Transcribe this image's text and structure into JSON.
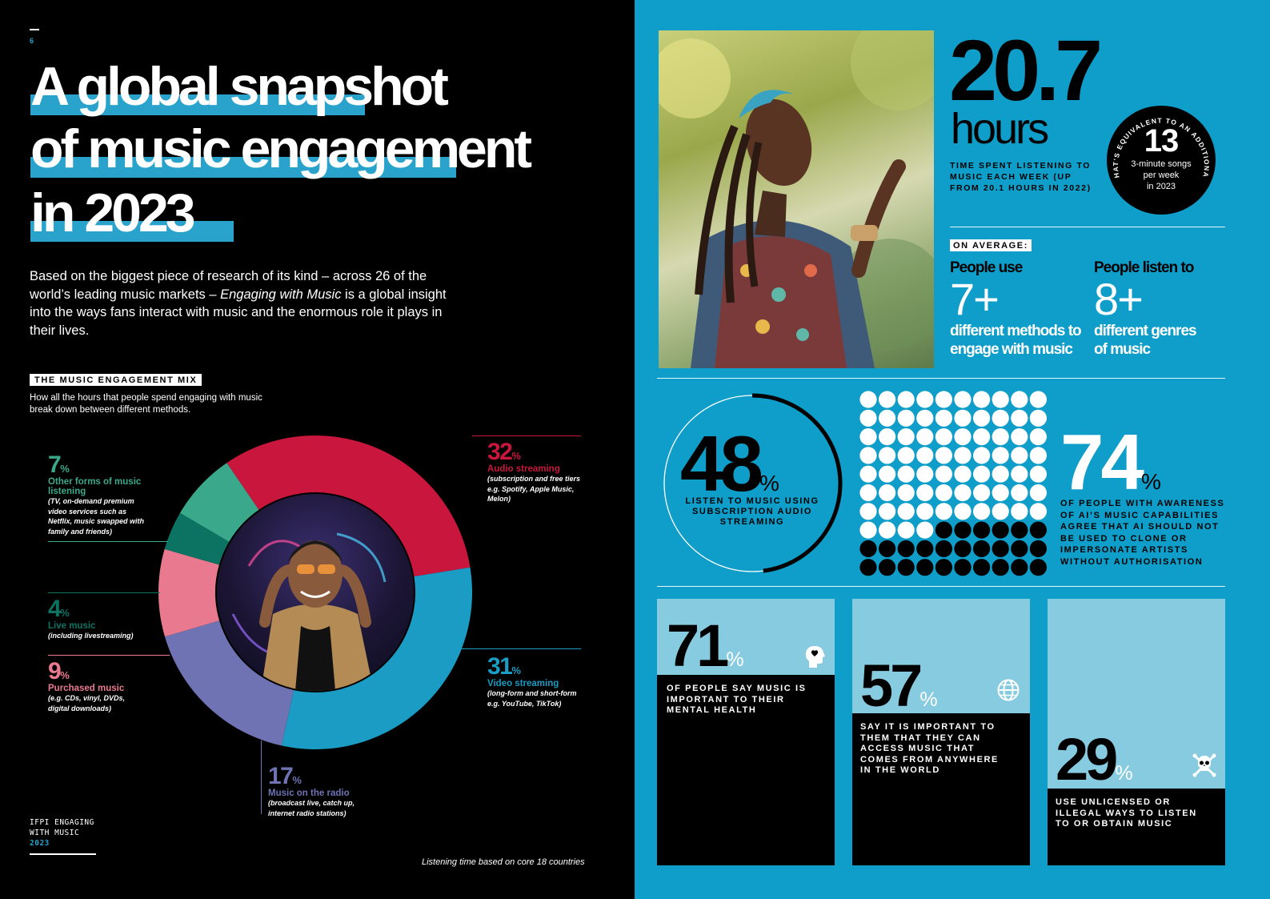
{
  "left": {
    "page_number": "6",
    "title_lines": [
      "A global snapshot",
      "of music engagement",
      "in 2023"
    ],
    "intro_parts": {
      "a": "Based on the biggest piece of research of its kind – across 26 of the world’s leading music markets – ",
      "b": "Engaging with Music",
      "c": " is a global insight into the ways fans interact with music and the enormous role it plays in their lives."
    },
    "mix_label": "THE MUSIC ENGAGEMENT MIX",
    "mix_description": "How all the hours that people spend engaging with music break down between different methods.",
    "footer_brand_lines": [
      "IFPI ENGAGING",
      "WITH MUSIC",
      "2023"
    ],
    "footnote": "Listening time based on core 18 countries"
  },
  "chart_data": {
    "type": "pie",
    "donut": true,
    "unit": "%",
    "slices": [
      {
        "name": "Audio streaming",
        "value": 32,
        "note": "(subscription and free tiers e.g. Spotify, Apple Music, Melon)",
        "color": "#c8163d"
      },
      {
        "name": "Video streaming",
        "value": 31,
        "note": "(long-form and short-form e.g. YouTube, TikTok)",
        "color": "#1a9cc4"
      },
      {
        "name": "Music on the radio",
        "value": 17,
        "note": "(broadcast live, catch up, internet radio stations)",
        "color": "#6f73b4"
      },
      {
        "name": "Purchased music",
        "value": 9,
        "note": "(e.g. CDs, vinyl, DVDs, digital downloads)",
        "color": "#e9798e"
      },
      {
        "name": "Live music",
        "value": 4,
        "note": "(including livestreaming)",
        "color": "#0c7363"
      },
      {
        "name": "Other forms of music listening",
        "value": 7,
        "note": "(TV, on-demand premium video services such as Netflix, music swapped with family and friends)",
        "color": "#3aa88a"
      }
    ]
  },
  "right": {
    "hours_value": "20.7",
    "hours_unit": "hours",
    "hours_note": "TIME SPENT LISTENING TO MUSIC EACH WEEK (UP FROM 20.1 HOURS IN 2022)",
    "equiv_arc_text": "THAT’S EQUIVALENT TO AN ADDITIONAL",
    "equiv_number": "13",
    "equiv_lines": [
      "3-minute songs",
      "per week",
      "in 2023"
    ],
    "on_average_label": "ON AVERAGE:",
    "methods": {
      "heading": "People use",
      "value": "7+",
      "lines": [
        "different methods to",
        "engage with music"
      ]
    },
    "genres": {
      "heading": "People listen to",
      "value": "8+",
      "lines": [
        "different genres",
        "of music"
      ]
    },
    "subscription": {
      "value": "48",
      "unit": "%",
      "text": "LISTEN TO MUSIC USING SUBSCRIPTION AUDIO STREAMING"
    },
    "ai": {
      "value": "74",
      "unit": "%",
      "text": "OF PEOPLE WITH AWARENESS OF AI’S MUSIC CAPABILITIES AGREE THAT AI SHOULD NOT BE USED TO CLONE OR IMPERSONATE ARTISTS WITHOUT AUTHORISATION"
    },
    "cards": [
      {
        "value": "71",
        "unit": "%",
        "text": "OF PEOPLE SAY MUSIC IS IMPORTANT TO THEIR MENTAL HEALTH",
        "icon": "head-heart-icon"
      },
      {
        "value": "57",
        "unit": "%",
        "text": "SAY IT IS IMPORTANT TO THEM THAT THEY CAN ACCESS MUSIC THAT COMES FROM ANYWHERE IN THE WORLD",
        "icon": "globe-icon"
      },
      {
        "value": "29",
        "unit": "%",
        "text": "USE UNLICENSED OR ILLEGAL WAYS TO LISTEN TO OR OBTAIN MUSIC",
        "icon": "skull-crossbones-icon"
      }
    ]
  },
  "colors": {
    "blue": "#0f9dc9",
    "light_blue": "#87cbe0",
    "accent_blue": "#29a3cc"
  }
}
